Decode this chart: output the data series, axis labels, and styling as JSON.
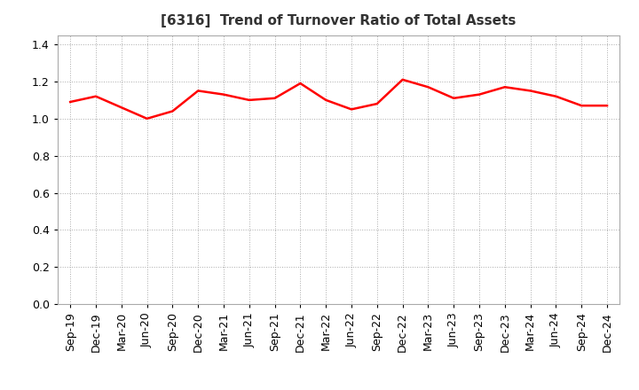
{
  "title": "[6316]  Trend of Turnover Ratio of Total Assets",
  "title_fontsize": 11,
  "title_color": "#333333",
  "line_color": "#FF0000",
  "line_width": 1.8,
  "background_color": "#FFFFFF",
  "plot_bg_color": "#FFFFFF",
  "grid_color": "#AAAAAA",
  "grid_linestyle": ":",
  "grid_linewidth": 0.7,
  "ylim": [
    0.0,
    1.45
  ],
  "yticks": [
    0.0,
    0.2,
    0.4,
    0.6,
    0.8,
    1.0,
    1.2,
    1.4
  ],
  "x_labels": [
    "Sep-19",
    "Dec-19",
    "Mar-20",
    "Jun-20",
    "Sep-20",
    "Dec-20",
    "Mar-21",
    "Jun-21",
    "Sep-21",
    "Dec-21",
    "Mar-22",
    "Jun-22",
    "Sep-22",
    "Dec-22",
    "Mar-23",
    "Jun-23",
    "Sep-23",
    "Dec-23",
    "Mar-24",
    "Jun-24",
    "Sep-24",
    "Dec-24"
  ],
  "values": [
    1.09,
    1.12,
    1.06,
    1.0,
    1.04,
    1.15,
    1.13,
    1.1,
    1.11,
    1.19,
    1.1,
    1.05,
    1.08,
    1.21,
    1.17,
    1.11,
    1.13,
    1.17,
    1.15,
    1.12,
    1.07,
    1.07
  ],
  "tick_fontsize": 9,
  "xlabel_fontsize": 9
}
